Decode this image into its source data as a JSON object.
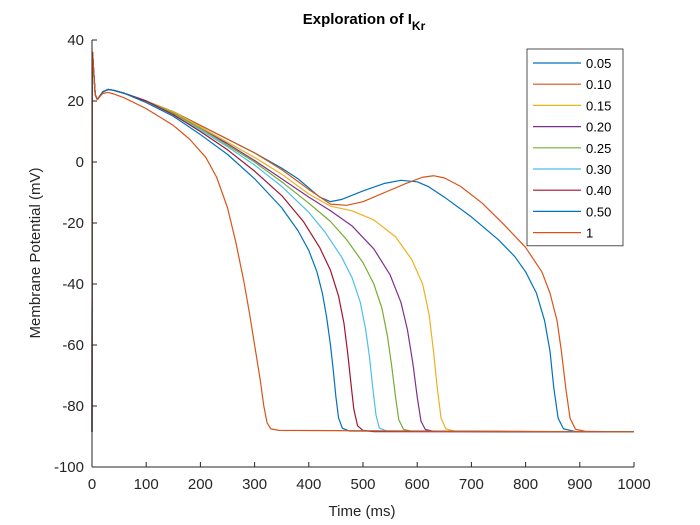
{
  "chart_data": {
    "type": "line",
    "title_main": "Exploration of I",
    "title_sub": "Kr",
    "xlabel": "Time (ms)",
    "ylabel": "Membrane Potential (mV)",
    "xlim": [
      0,
      1000
    ],
    "ylim": [
      -100,
      40
    ],
    "xticks": [
      "0",
      "100",
      "200",
      "300",
      "400",
      "500",
      "600",
      "700",
      "800",
      "900",
      "1000"
    ],
    "yticks": [
      "40",
      "20",
      "0",
      "-20",
      "-40",
      "-60",
      "-80",
      "-100"
    ],
    "legend_position": "top-right",
    "grid": false,
    "series": [
      {
        "name": "0.05",
        "color": "#0072BD",
        "points": [
          [
            0,
            -88.5
          ],
          [
            0.5,
            30
          ],
          [
            1,
            36
          ],
          [
            3,
            30
          ],
          [
            6,
            22
          ],
          [
            10,
            20.5
          ],
          [
            20,
            23
          ],
          [
            30,
            23.8
          ],
          [
            40,
            23.5
          ],
          [
            60,
            22.5
          ],
          [
            100,
            20
          ],
          [
            150,
            16.5
          ],
          [
            200,
            12
          ],
          [
            250,
            7.5
          ],
          [
            300,
            3
          ],
          [
            350,
            -2
          ],
          [
            380,
            -5.5
          ],
          [
            400,
            -8.5
          ],
          [
            420,
            -11.5
          ],
          [
            440,
            -13
          ],
          [
            460,
            -12.3
          ],
          [
            500,
            -9.5
          ],
          [
            540,
            -7
          ],
          [
            570,
            -6
          ],
          [
            600,
            -6.5
          ],
          [
            620,
            -8
          ],
          [
            650,
            -11.5
          ],
          [
            700,
            -18
          ],
          [
            750,
            -25.5
          ],
          [
            780,
            -31
          ],
          [
            800,
            -36
          ],
          [
            820,
            -43
          ],
          [
            835,
            -52
          ],
          [
            845,
            -62
          ],
          [
            852,
            -74
          ],
          [
            860,
            -84
          ],
          [
            870,
            -87.5
          ],
          [
            890,
            -88.3
          ],
          [
            1000,
            -88.5
          ]
        ]
      },
      {
        "name": "0.10",
        "color": "#D95319",
        "points": [
          [
            0,
            -88.5
          ],
          [
            0.5,
            30
          ],
          [
            1,
            36
          ],
          [
            3,
            30
          ],
          [
            6,
            22
          ],
          [
            10,
            20.5
          ],
          [
            20,
            23
          ],
          [
            30,
            23.8
          ],
          [
            40,
            23.5
          ],
          [
            60,
            22.5
          ],
          [
            100,
            20
          ],
          [
            150,
            16.5
          ],
          [
            200,
            12
          ],
          [
            250,
            7.5
          ],
          [
            300,
            3
          ],
          [
            350,
            -2.5
          ],
          [
            400,
            -9
          ],
          [
            440,
            -13.8
          ],
          [
            470,
            -14.2
          ],
          [
            500,
            -13
          ],
          [
            540,
            -10
          ],
          [
            580,
            -7
          ],
          [
            610,
            -5
          ],
          [
            630,
            -4.5
          ],
          [
            650,
            -5.2
          ],
          [
            680,
            -8
          ],
          [
            720,
            -13.5
          ],
          [
            760,
            -20.5
          ],
          [
            800,
            -28
          ],
          [
            830,
            -36
          ],
          [
            845,
            -43
          ],
          [
            858,
            -52
          ],
          [
            866,
            -62
          ],
          [
            874,
            -74
          ],
          [
            882,
            -84
          ],
          [
            892,
            -87.6
          ],
          [
            910,
            -88.3
          ],
          [
            1000,
            -88.5
          ]
        ]
      },
      {
        "name": "0.15",
        "color": "#EDB120",
        "points": [
          [
            0,
            -88.5
          ],
          [
            0.5,
            30
          ],
          [
            1,
            36
          ],
          [
            3,
            30
          ],
          [
            6,
            22
          ],
          [
            10,
            20.5
          ],
          [
            20,
            23
          ],
          [
            30,
            23.8
          ],
          [
            40,
            23.5
          ],
          [
            60,
            22.5
          ],
          [
            100,
            20
          ],
          [
            150,
            16.5
          ],
          [
            200,
            11.5
          ],
          [
            250,
            6.5
          ],
          [
            300,
            1.5
          ],
          [
            350,
            -4
          ],
          [
            400,
            -10.5
          ],
          [
            440,
            -14.5
          ],
          [
            480,
            -16
          ],
          [
            520,
            -19
          ],
          [
            560,
            -24.5
          ],
          [
            590,
            -32
          ],
          [
            610,
            -40
          ],
          [
            622,
            -50
          ],
          [
            630,
            -62
          ],
          [
            637,
            -74
          ],
          [
            644,
            -84
          ],
          [
            653,
            -87.5
          ],
          [
            670,
            -88.3
          ],
          [
            1000,
            -88.5
          ]
        ]
      },
      {
        "name": "0.20",
        "color": "#7E2F8E",
        "points": [
          [
            0,
            -88.5
          ],
          [
            0.5,
            30
          ],
          [
            1,
            36
          ],
          [
            3,
            30
          ],
          [
            6,
            22
          ],
          [
            10,
            20.5
          ],
          [
            20,
            23
          ],
          [
            30,
            23.8
          ],
          [
            40,
            23.5
          ],
          [
            60,
            22.5
          ],
          [
            100,
            20
          ],
          [
            150,
            16
          ],
          [
            200,
            11
          ],
          [
            250,
            6
          ],
          [
            300,
            0.5
          ],
          [
            350,
            -5.5
          ],
          [
            400,
            -11.5
          ],
          [
            440,
            -16
          ],
          [
            480,
            -21
          ],
          [
            520,
            -28.5
          ],
          [
            550,
            -37
          ],
          [
            570,
            -46
          ],
          [
            582,
            -55
          ],
          [
            592,
            -66
          ],
          [
            600,
            -77
          ],
          [
            607,
            -85
          ],
          [
            615,
            -87.7
          ],
          [
            630,
            -88.3
          ],
          [
            1000,
            -88.5
          ]
        ]
      },
      {
        "name": "0.25",
        "color": "#77AC30",
        "points": [
          [
            0,
            -88.5
          ],
          [
            0.5,
            30
          ],
          [
            1,
            36
          ],
          [
            3,
            30
          ],
          [
            6,
            22
          ],
          [
            10,
            20.5
          ],
          [
            20,
            23
          ],
          [
            30,
            23.8
          ],
          [
            40,
            23.5
          ],
          [
            60,
            22.5
          ],
          [
            100,
            20
          ],
          [
            150,
            16
          ],
          [
            200,
            11
          ],
          [
            250,
            5.5
          ],
          [
            300,
            0
          ],
          [
            350,
            -6.5
          ],
          [
            400,
            -13.5
          ],
          [
            440,
            -19.5
          ],
          [
            470,
            -25.5
          ],
          [
            500,
            -33
          ],
          [
            520,
            -40
          ],
          [
            535,
            -48
          ],
          [
            545,
            -57
          ],
          [
            553,
            -67
          ],
          [
            560,
            -77
          ],
          [
            566,
            -84.5
          ],
          [
            575,
            -87.7
          ],
          [
            590,
            -88.3
          ],
          [
            1000,
            -88.5
          ]
        ]
      },
      {
        "name": "0.30",
        "color": "#4DBEEE",
        "points": [
          [
            0,
            -88.5
          ],
          [
            0.5,
            30
          ],
          [
            1,
            36
          ],
          [
            3,
            30
          ],
          [
            6,
            22
          ],
          [
            10,
            20.5
          ],
          [
            20,
            23
          ],
          [
            30,
            23.8
          ],
          [
            40,
            23.5
          ],
          [
            60,
            22.5
          ],
          [
            100,
            20
          ],
          [
            150,
            15.5
          ],
          [
            200,
            10.5
          ],
          [
            250,
            5
          ],
          [
            300,
            -1
          ],
          [
            350,
            -8
          ],
          [
            400,
            -16.5
          ],
          [
            430,
            -23
          ],
          [
            460,
            -31
          ],
          [
            480,
            -38
          ],
          [
            495,
            -46
          ],
          [
            505,
            -55
          ],
          [
            512,
            -64
          ],
          [
            518,
            -74
          ],
          [
            524,
            -83
          ],
          [
            530,
            -87.2
          ],
          [
            545,
            -88.3
          ],
          [
            1000,
            -88.5
          ]
        ]
      },
      {
        "name": "0.40",
        "color": "#A2142F",
        "points": [
          [
            0,
            -88.5
          ],
          [
            0.5,
            30
          ],
          [
            1,
            36
          ],
          [
            3,
            30
          ],
          [
            6,
            22
          ],
          [
            10,
            20.5
          ],
          [
            20,
            23
          ],
          [
            30,
            23.8
          ],
          [
            40,
            23.5
          ],
          [
            60,
            22.5
          ],
          [
            100,
            20
          ],
          [
            150,
            15.5
          ],
          [
            200,
            10
          ],
          [
            250,
            4
          ],
          [
            300,
            -3
          ],
          [
            350,
            -11
          ],
          [
            390,
            -19.5
          ],
          [
            420,
            -28
          ],
          [
            440,
            -35.5
          ],
          [
            455,
            -44
          ],
          [
            465,
            -53
          ],
          [
            472,
            -63
          ],
          [
            478,
            -73
          ],
          [
            483,
            -81
          ],
          [
            490,
            -86.5
          ],
          [
            500,
            -88
          ],
          [
            520,
            -88.4
          ],
          [
            1000,
            -88.5
          ]
        ]
      },
      {
        "name": "0.50",
        "color": "#0072BD",
        "points": [
          [
            0,
            -88.5
          ],
          [
            0.5,
            30
          ],
          [
            1,
            36
          ],
          [
            3,
            30
          ],
          [
            6,
            22
          ],
          [
            10,
            20.5
          ],
          [
            20,
            23
          ],
          [
            30,
            23.8
          ],
          [
            40,
            23.5
          ],
          [
            60,
            22.5
          ],
          [
            100,
            19.5
          ],
          [
            150,
            15
          ],
          [
            200,
            9
          ],
          [
            250,
            2.5
          ],
          [
            300,
            -5.5
          ],
          [
            350,
            -15
          ],
          [
            380,
            -22.5
          ],
          [
            400,
            -29
          ],
          [
            415,
            -36
          ],
          [
            425,
            -43
          ],
          [
            433,
            -51
          ],
          [
            440,
            -60
          ],
          [
            445,
            -68
          ],
          [
            450,
            -77
          ],
          [
            455,
            -84
          ],
          [
            462,
            -87.3
          ],
          [
            475,
            -88.2
          ],
          [
            1000,
            -88.5
          ]
        ]
      },
      {
        "name": "1",
        "color": "#D95319",
        "points": [
          [
            0,
            -88.5
          ],
          [
            0.5,
            30
          ],
          [
            1,
            36
          ],
          [
            3,
            30
          ],
          [
            6,
            22
          ],
          [
            10,
            20.5
          ],
          [
            20,
            22.5
          ],
          [
            30,
            22.8
          ],
          [
            40,
            22.3
          ],
          [
            60,
            21
          ],
          [
            100,
            17.5
          ],
          [
            150,
            12
          ],
          [
            180,
            7.5
          ],
          [
            210,
            1.5
          ],
          [
            230,
            -5
          ],
          [
            250,
            -15
          ],
          [
            265,
            -26
          ],
          [
            280,
            -39
          ],
          [
            290,
            -49
          ],
          [
            300,
            -60
          ],
          [
            310,
            -71
          ],
          [
            317,
            -80
          ],
          [
            323,
            -85.5
          ],
          [
            330,
            -87.5
          ],
          [
            345,
            -88
          ],
          [
            1000,
            -88.5
          ]
        ]
      }
    ]
  }
}
